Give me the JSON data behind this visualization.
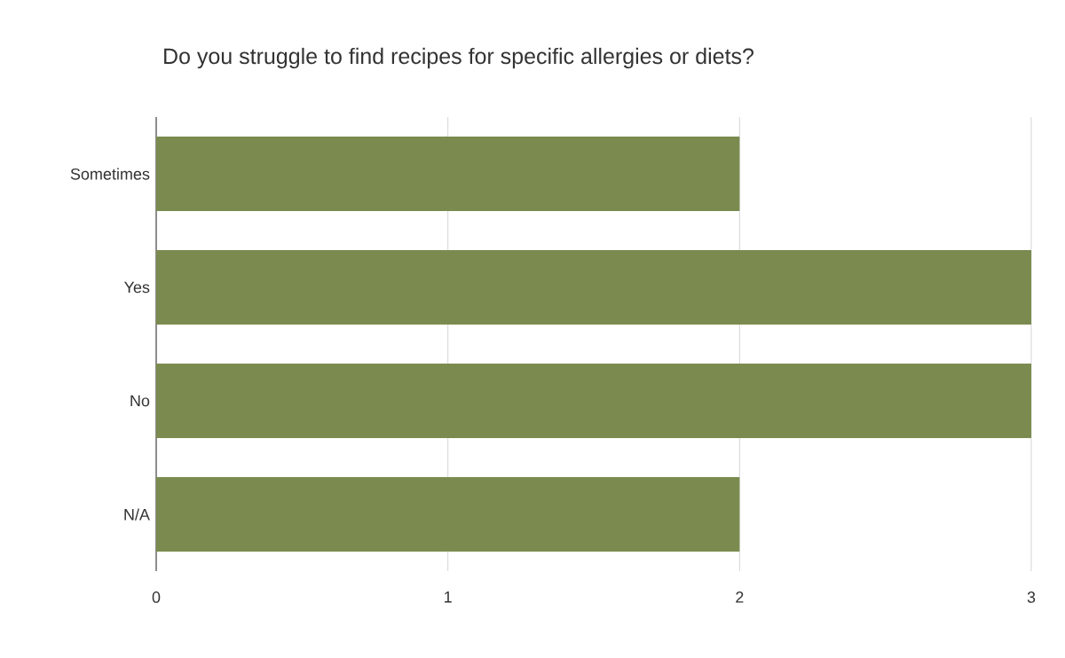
{
  "chart_data": {
    "type": "bar",
    "orientation": "horizontal",
    "title": "Do you struggle to find recipes for specific allergies or diets?",
    "categories": [
      "Sometimes",
      "Yes",
      "No",
      "N/A"
    ],
    "values": [
      2,
      3,
      3,
      2
    ],
    "color": "#7b8b4f",
    "xlim": [
      0,
      3
    ],
    "xticks": [
      0,
      1,
      2,
      3
    ],
    "grid": "x"
  }
}
